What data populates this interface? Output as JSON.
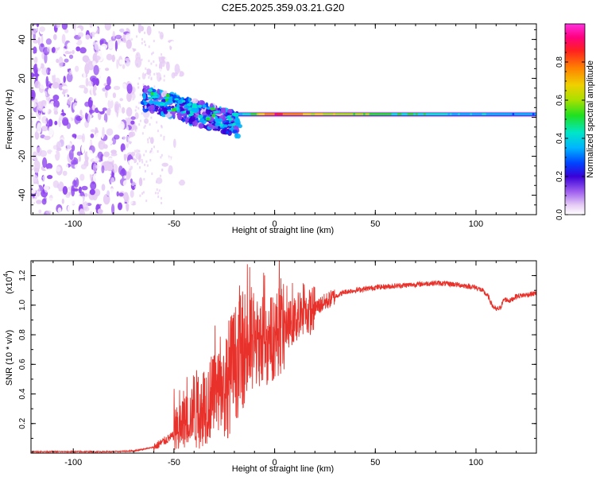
{
  "title": "C2E5.2025.359.03.21.G20",
  "chart_data": [
    {
      "type": "heatmap",
      "title": "C2E5.2025.359.03.21.G20",
      "xlabel": "Height of straight line (km)",
      "ylabel": "Frequency (Hz)",
      "xlim": [
        -121,
        130
      ],
      "ylim": [
        -50,
        48
      ],
      "xticks": [
        -100,
        -50,
        0,
        50,
        100
      ],
      "yticks": [
        -40,
        -20,
        0,
        20,
        40
      ],
      "colorbar": {
        "label": "Normalized spectral amplitude",
        "range": [
          0.0,
          1.0
        ],
        "ticks": [
          "0.0",
          "0.2",
          "0.4",
          "0.6",
          "0.8"
        ],
        "colormap": [
          "#ffffff",
          "#e6ccf5",
          "#8f44f0",
          "#3a00d8",
          "#0044ff",
          "#00b4ff",
          "#00e6c8",
          "#20e020",
          "#a8e000",
          "#f0d000",
          "#ff8000",
          "#ff2020",
          "#ff0080",
          "#ff30e0"
        ]
      },
      "ridge": {
        "description_points": [
          {
            "x": -62,
            "y": 10,
            "amp": 0.3
          },
          {
            "x": -55,
            "y": 8,
            "amp": 0.35
          },
          {
            "x": -45,
            "y": 0,
            "amp": 0.35
          },
          {
            "x": -35,
            "y": -3,
            "amp": 0.3
          },
          {
            "x": -25,
            "y": 0,
            "amp": 0.3
          },
          {
            "x": -15,
            "y": 2,
            "amp": 0.5
          },
          {
            "x": 0,
            "y": 2,
            "amp": 0.9
          },
          {
            "x": 20,
            "y": 1,
            "amp": 0.7
          },
          {
            "x": 60,
            "y": 1,
            "amp": 0.55
          },
          {
            "x": 100,
            "y": 1,
            "amp": 0.45
          },
          {
            "x": 130,
            "y": 1,
            "amp": 0.4
          }
        ]
      }
    },
    {
      "type": "line",
      "xlabel": "Height of straight line (km)",
      "ylabel": "SNR (10 * v/v)",
      "yscale_label": "(x10",
      "yscale_exp": "4",
      "xlim": [
        -121,
        130
      ],
      "ylim": [
        0,
        1.3
      ],
      "xticks": [
        -100,
        -50,
        0,
        50,
        100
      ],
      "yticks": [
        "0.2",
        "0.4",
        "0.6",
        "0.8",
        "1.0",
        "1.2"
      ],
      "series": [
        {
          "name": "SNR",
          "color": "#e8312a",
          "x": [
            -121,
            -100,
            -80,
            -70,
            -60,
            -55,
            -50,
            -45,
            -40,
            -35,
            -30,
            -25,
            -20,
            -15,
            -10,
            -5,
            0,
            5,
            10,
            15,
            20,
            25,
            30,
            35,
            40,
            50,
            60,
            70,
            80,
            90,
            100,
            103,
            106,
            108,
            110,
            112,
            114,
            117,
            120,
            125,
            130
          ],
          "y": [
            0.01,
            0.01,
            0.01,
            0.015,
            0.04,
            0.08,
            0.12,
            0.2,
            0.28,
            0.33,
            0.38,
            0.45,
            0.6,
            0.72,
            0.75,
            0.73,
            0.8,
            0.85,
            0.9,
            0.93,
            0.98,
            1.02,
            1.06,
            1.09,
            1.1,
            1.12,
            1.13,
            1.14,
            1.15,
            1.14,
            1.12,
            1.1,
            1.06,
            1.0,
            0.97,
            0.98,
            1.04,
            1.03,
            1.06,
            1.07,
            1.08
          ]
        }
      ],
      "noise_amplitude_note": "Large spikes between -50 and 15 km; max spike about 1.3 near -15 km"
    }
  ]
}
